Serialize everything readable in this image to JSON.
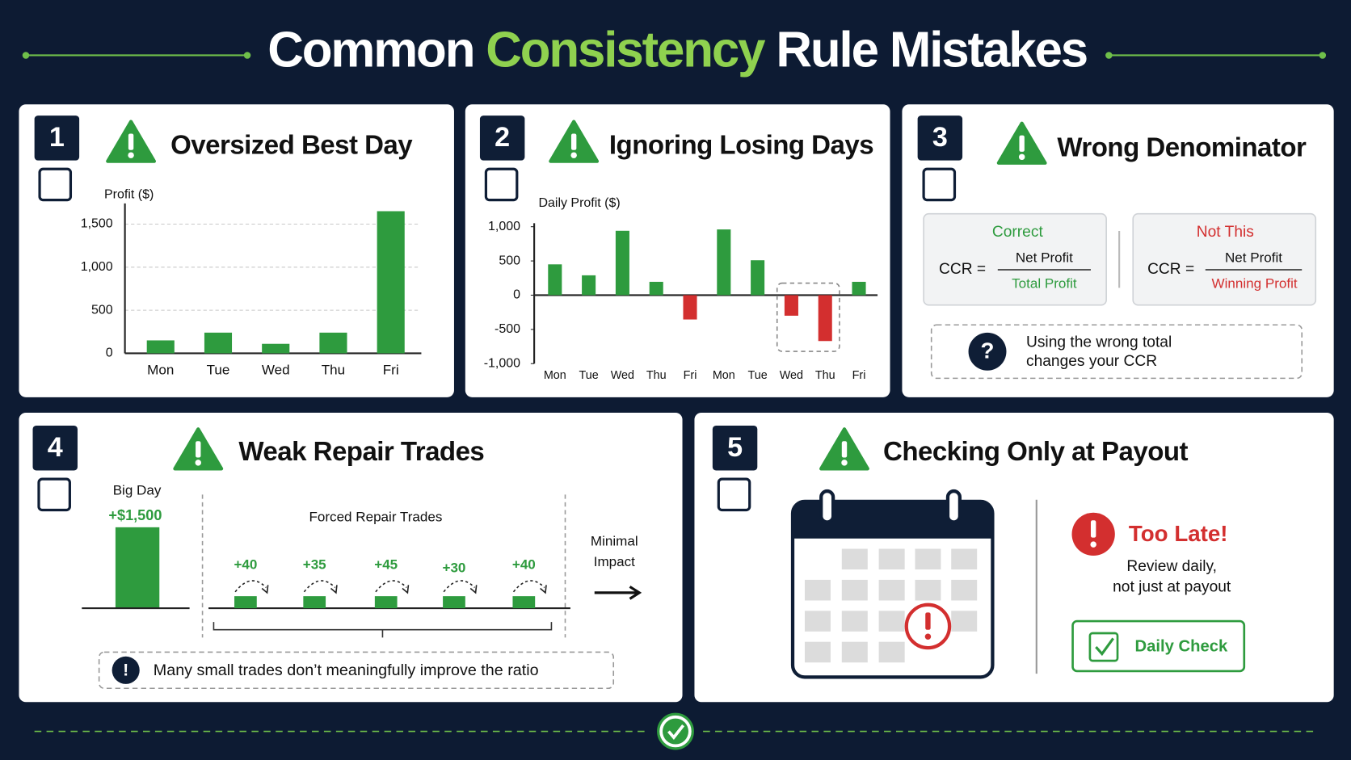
{
  "header": {
    "title_start": "Common",
    "title_highlight": "Consistency",
    "title_end": "Rule Mistakes"
  },
  "cards": [
    {
      "number": "1",
      "title": "Oversized Best Day"
    },
    {
      "number": "2",
      "title": "Ignoring Losing Days"
    },
    {
      "number": "3",
      "title": "Wrong Denominator",
      "correct": {
        "label": "Correct",
        "lhs": "CCR =",
        "numerator": "Net Profit",
        "denominator": "Total Profit"
      },
      "wrong": {
        "label": "Not This",
        "lhs": "CCR =",
        "numerator": "Net Profit",
        "denominator": "Winning Profit"
      },
      "note_icon": "?",
      "note_lines": [
        "Using the wrong total",
        "changes your CCR"
      ]
    },
    {
      "number": "4",
      "title": "Weak Repair Trades",
      "big_day_label": "Big Day",
      "big_day_value": "+$1,500",
      "repair_label": "Forced Repair Trades",
      "repair_trades": [
        "+40",
        "+35",
        "+45",
        "+30",
        "+40"
      ],
      "impact_lines": [
        "Minimal",
        "Impact"
      ],
      "note_icon": "!",
      "note": "Many small trades don’t meaningfully improve the ratio"
    },
    {
      "number": "5",
      "title": "Checking Only at Payout",
      "alert_title": "Too Late!",
      "alert_lines": [
        "Review daily,",
        "not just at payout"
      ],
      "button": "Daily Check"
    }
  ],
  "chart_data": [
    {
      "type": "bar",
      "y_label": "Profit ($)",
      "categories": [
        "Mon",
        "Tue",
        "Wed",
        "Thu",
        "Fri"
      ],
      "values": [
        150,
        240,
        110,
        240,
        1650
      ],
      "color": "#2e9b3e",
      "ylim": [
        0,
        1700
      ],
      "yticks": [
        0,
        500,
        {
          "value": 1000,
          "label": "1,000"
        },
        {
          "value": 1500,
          "label": "1,500"
        }
      ],
      "grid": true
    },
    {
      "type": "bar",
      "y_label": "Daily Profit ($)",
      "categories": [
        "Mon",
        "Tue",
        "Wed",
        "Thu",
        "Fri",
        "Mon",
        "Tue",
        "Wed",
        "Thu",
        "Fri"
      ],
      "values": [
        450,
        290,
        940,
        195,
        -355,
        960,
        510,
        -300,
        -670,
        195
      ],
      "color": "#2e9b3e",
      "negative_color": "#d32f2f",
      "ylim": [
        -1000,
        1000
      ],
      "yticks": [
        {
          "value": -1000,
          "label": "-1,000"
        },
        -500,
        0,
        500,
        {
          "value": 1000,
          "label": "1,000"
        }
      ],
      "grid": false,
      "highlight": [
        7,
        8
      ]
    }
  ]
}
